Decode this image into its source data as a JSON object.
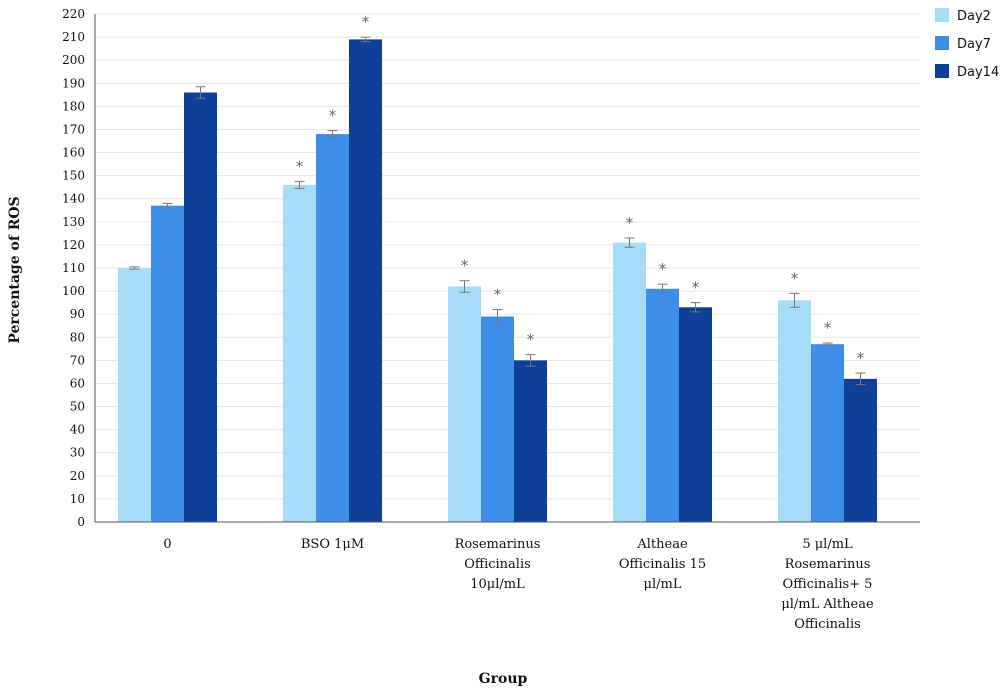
{
  "chart_data": {
    "type": "bar",
    "ylabel": "Percentage of ROS",
    "xlabel": "Group",
    "ylim": [
      0,
      220
    ],
    "ytick_step": 10,
    "grid": true,
    "legend_position": "top-right",
    "categories": [
      [
        "0"
      ],
      [
        "BSO 1μM"
      ],
      [
        "Rosemarinus",
        "Officinalis",
        "10μl/mL"
      ],
      [
        "Altheae",
        "Officinalis 15",
        "μl/mL"
      ],
      [
        "5 μl/mL",
        "Rosemarinus",
        "Officinalis+ 5",
        "μl/mL Altheae",
        "Officinalis"
      ]
    ],
    "series": [
      {
        "name": "Day2",
        "color": "#a6dcf7",
        "values": [
          110,
          146,
          102,
          121,
          96
        ],
        "errors": [
          0.5,
          1.5,
          2.5,
          2,
          3
        ],
        "significant": [
          false,
          true,
          true,
          true,
          true
        ]
      },
      {
        "name": "Day7",
        "color": "#3c8ee8",
        "values": [
          137,
          168,
          89,
          101,
          77
        ],
        "errors": [
          1,
          1.5,
          3,
          2,
          0.5
        ],
        "significant": [
          false,
          true,
          true,
          true,
          true
        ]
      },
      {
        "name": "Day14",
        "color": "#0f3f99",
        "values": [
          186,
          209,
          70,
          93,
          62
        ],
        "errors": [
          2.5,
          1,
          2.5,
          2,
          2.5
        ],
        "significant": [
          false,
          true,
          true,
          true,
          true
        ]
      }
    ],
    "significance_marker": "*"
  }
}
